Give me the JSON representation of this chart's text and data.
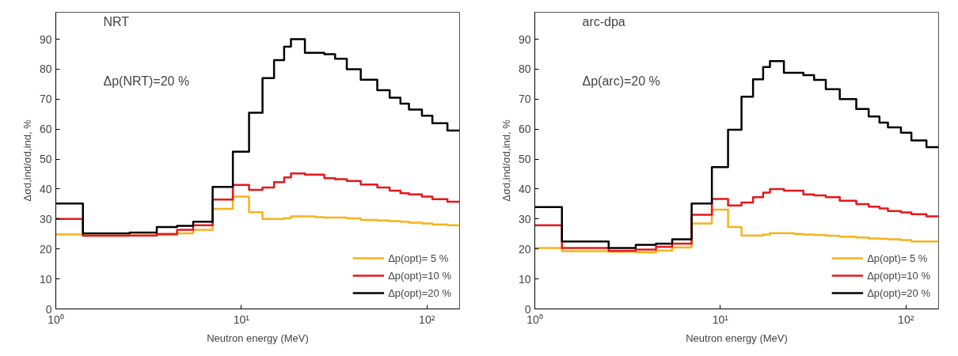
{
  "chart_data": [
    {
      "type": "step",
      "xlabel": "Neutron energy (MeV)",
      "ylabel": "Δσd,ind/σd,ind, %",
      "annotations": [
        "NRT",
        "Δp(NRT)=20 %"
      ],
      "x": [
        1,
        1.4,
        2.5,
        3.5,
        4.5,
        5.5,
        7,
        9,
        11,
        13,
        15,
        17,
        18.5,
        22,
        25,
        28,
        32,
        37,
        44,
        54,
        63,
        72,
        80,
        94,
        107,
        129,
        150
      ],
      "xlim": [
        1,
        150
      ],
      "xticks": [
        {
          "value": 1,
          "label": "10⁰"
        },
        {
          "value": 10,
          "label": "10¹"
        },
        {
          "value": 100,
          "label": "10²"
        }
      ],
      "ylim": [
        0,
        99
      ],
      "yticks": [
        0,
        10,
        20,
        30,
        40,
        50,
        60,
        70,
        80,
        90
      ],
      "log": "x",
      "grid": false,
      "legend": "bottom right",
      "series": [
        {
          "name": "Δp(opt)= 5 %",
          "color": "#f5b31c",
          "values": [
            24.9,
            24.5,
            24.5,
            24.7,
            25.2,
            26.4,
            33.4,
            37.5,
            32.3,
            30,
            30,
            30.3,
            30.9,
            30.9,
            30.6,
            30.5,
            30.5,
            30.2,
            29.7,
            29.5,
            29.3,
            29.1,
            28.8,
            28.5,
            28.2,
            27.9,
            27.9
          ]
        },
        {
          "name": "Δp(opt)=10 %",
          "color": "#e8161b",
          "values": [
            30,
            24.4,
            24.5,
            25,
            26.4,
            27.9,
            36.5,
            41.4,
            39.7,
            40.5,
            42.3,
            43.9,
            45.2,
            44.8,
            44.8,
            43.6,
            43.3,
            42.7,
            41.5,
            40.5,
            39.5,
            38.6,
            38.2,
            37.5,
            36.6,
            35.8,
            35.8
          ]
        },
        {
          "name": "Δp(opt)=20 %",
          "color": "#000000",
          "values": [
            35.2,
            25.2,
            25.5,
            27.3,
            27.7,
            29.1,
            40.7,
            52.5,
            65.5,
            77,
            83,
            87.5,
            90,
            85.5,
            85.5,
            85,
            83.5,
            80,
            76.5,
            73,
            70.5,
            68.5,
            66.5,
            64.5,
            62,
            59.5,
            59.5
          ]
        }
      ]
    },
    {
      "type": "step",
      "xlabel": "Neutron energy (MeV)",
      "ylabel": "Δσd,ind/σd,ind, %",
      "annotations": [
        "arc-dpa",
        "Δp(arc)=20 %"
      ],
      "x": [
        1,
        1.4,
        2.5,
        3.5,
        4.5,
        5.5,
        7,
        9,
        11,
        13,
        15,
        17,
        18.5,
        22,
        25,
        28,
        32,
        37,
        44,
        54,
        63,
        72,
        80,
        94,
        107,
        129,
        150
      ],
      "xlim": [
        1,
        150
      ],
      "xticks": [
        {
          "value": 1,
          "label": "10⁰"
        },
        {
          "value": 10,
          "label": "10¹"
        },
        {
          "value": 100,
          "label": "10²"
        }
      ],
      "ylim": [
        0,
        99
      ],
      "yticks": [
        0,
        10,
        20,
        30,
        40,
        50,
        60,
        70,
        80,
        90
      ],
      "log": "x",
      "grid": false,
      "legend": "bottom right",
      "series": [
        {
          "name": "Δp(opt)= 5 %",
          "color": "#f5b31c",
          "values": [
            20.3,
            19.3,
            19.1,
            18.9,
            19.5,
            20.5,
            28.5,
            33.1,
            27.3,
            24.5,
            24.5,
            24.8,
            25.3,
            25.3,
            25,
            24.8,
            24.7,
            24.4,
            24.1,
            23.8,
            23.5,
            23.4,
            23.2,
            23,
            22.5,
            22.5,
            22.5
          ]
        },
        {
          "name": "Δp(opt)=10 %",
          "color": "#e8161b",
          "values": [
            27.9,
            20.3,
            19.4,
            19.8,
            20.7,
            21.8,
            31.4,
            36.7,
            34.5,
            35.5,
            37.3,
            38.8,
            40,
            39.5,
            39.5,
            38.2,
            37.9,
            37.3,
            36.1,
            35,
            34.1,
            33.5,
            32.7,
            32.2,
            31.6,
            30.9,
            30.9
          ]
        },
        {
          "name": "Δp(opt)=20 %",
          "color": "#000000",
          "values": [
            34,
            22.5,
            20.3,
            21.4,
            21.8,
            23.2,
            35.2,
            47.3,
            59.8,
            70.8,
            76.6,
            80.7,
            82.7,
            78.8,
            78.8,
            78,
            76.4,
            73.3,
            70,
            66.7,
            64.2,
            62.2,
            60.6,
            58.8,
            56.2,
            54,
            54
          ]
        }
      ]
    }
  ]
}
